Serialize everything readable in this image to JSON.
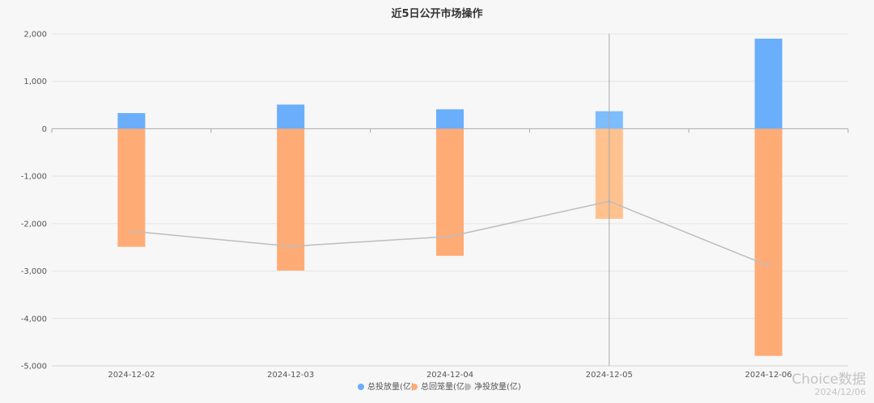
{
  "chart_data": {
    "type": "bar",
    "title": "近5日公开市场操作",
    "categories": [
      "2024-12-02",
      "2024-12-03",
      "2024-12-04",
      "2024-12-05",
      "2024-12-06"
    ],
    "series": [
      {
        "name": "总投放量(亿)",
        "type": "bar",
        "color": "#6aaefc",
        "values": [
          330,
          510,
          410,
          370,
          1900
        ]
      },
      {
        "name": "总回笼量(亿)",
        "type": "bar",
        "color": "#ffab76",
        "values": [
          -2490,
          -2990,
          -2680,
          -1900,
          -4790
        ]
      },
      {
        "name": "净投放量(亿)",
        "type": "line",
        "color": "#bdbdbd",
        "values": [
          -2160,
          -2480,
          -2270,
          -1530,
          -2890
        ]
      }
    ],
    "ylim": [
      -5000,
      2000
    ],
    "yticks": [
      2000,
      1000,
      0,
      -1000,
      -2000,
      -3000,
      -4000,
      -5000
    ],
    "ytick_labels": [
      "2,000",
      "1,000",
      "0",
      "-1,000",
      "-2,000",
      "-3,000",
      "-4,000",
      "-5,000"
    ],
    "grid": true,
    "legend_position": "bottom-center",
    "highlighted_category": "2024-12-05",
    "highlight_colors": {
      "bar_positive": "#7dbcfd",
      "bar_negative": "#ffc28f"
    }
  },
  "watermark": {
    "brand": "Choice数据",
    "date": "2024/12/06"
  }
}
